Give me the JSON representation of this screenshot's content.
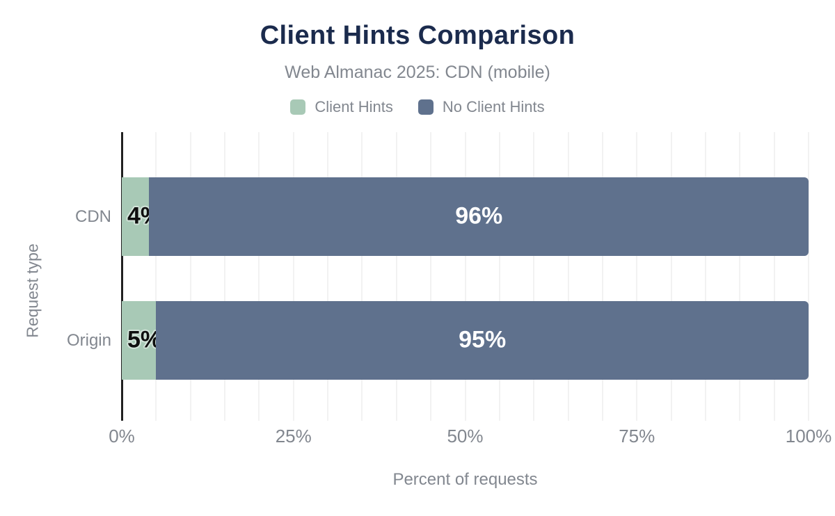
{
  "header": {
    "title": "Client Hints Comparison",
    "subtitle": "Web Almanac 2025: CDN (mobile)"
  },
  "colors": {
    "title_text": "#1b2b4d",
    "muted_text": "#82878f",
    "axis_line": "#212121",
    "gridline": "#f2f2f2",
    "bar_label_light": "#ffffff",
    "bar_label_dark": "#0f0f0f",
    "bar_label_halo": "#d3e4da",
    "background": "#ffffff"
  },
  "chart_data": {
    "type": "bar",
    "orientation": "horizontal",
    "stacked": true,
    "title": "Client Hints Comparison",
    "subtitle": "Web Almanac 2025: CDN (mobile)",
    "categories": [
      "CDN",
      "Origin"
    ],
    "series": [
      {
        "name": "Client Hints",
        "color": "#a8c9b6",
        "values": [
          4,
          5
        ],
        "data_labels": [
          "4%",
          "5%"
        ]
      },
      {
        "name": "No Client Hints",
        "color": "#5f718d",
        "values": [
          96,
          95
        ],
        "data_labels": [
          "96%",
          "95%"
        ]
      }
    ],
    "xlabel": "Percent of requests",
    "ylabel": "Request type",
    "xlim": [
      0,
      100
    ],
    "xticks": [
      {
        "label": "0%",
        "value": 0
      },
      {
        "label": "25%",
        "value": 25
      },
      {
        "label": "50%",
        "value": 50
      },
      {
        "label": "75%",
        "value": 75
      },
      {
        "label": "100%",
        "value": 100
      }
    ],
    "grid": {
      "show": true,
      "vertical_step": 5
    },
    "legend_position": "top-center"
  }
}
